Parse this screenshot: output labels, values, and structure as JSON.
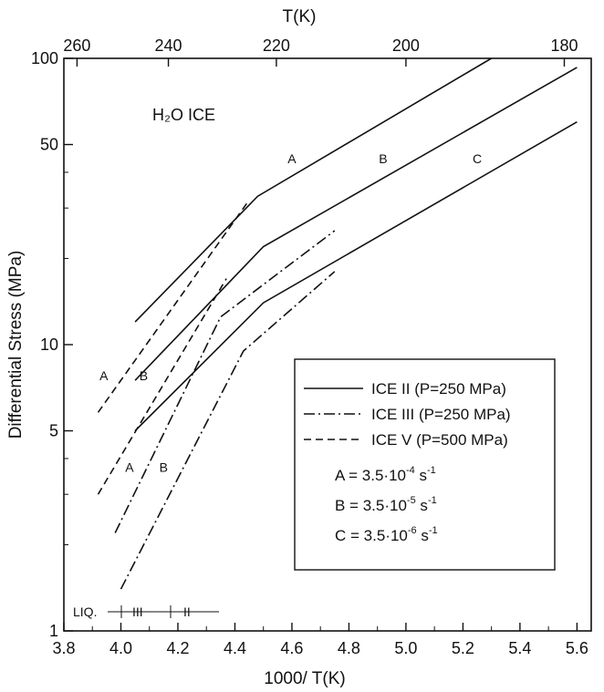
{
  "chart_data": {
    "type": "line",
    "title": "H₂O ICE",
    "xlabel": "1000/ T(K)",
    "ylabel": "Differential Stress (MPa)",
    "top_xlabel": "T(K)",
    "xlim": [
      3.8,
      5.65
    ],
    "ylim": [
      1,
      100
    ],
    "yscale": "log",
    "grid": false,
    "legend_position": "bottom-right",
    "x_ticks": [
      "3.8",
      "4.0",
      "4.2",
      "4.4",
      "4.6",
      "4.8",
      "5.0",
      "5.2",
      "5.4",
      "5.6"
    ],
    "y_ticks": [
      "1",
      "5",
      "10",
      "50",
      "100"
    ],
    "top_ticks": [
      "260",
      "240",
      "220",
      "200",
      "180"
    ],
    "series": [
      {
        "name": "ICE II (P=250 MPa)",
        "label": "A",
        "style": "solid",
        "x": [
          4.05,
          4.48,
          5.3
        ],
        "y": [
          12,
          33,
          100
        ]
      },
      {
        "name": "ICE II (P=250 MPa)",
        "label": "B",
        "style": "solid",
        "x": [
          4.05,
          4.5,
          5.6
        ],
        "y": [
          7.5,
          22,
          93
        ]
      },
      {
        "name": "ICE II (P=250 MPa)",
        "label": "C",
        "style": "solid",
        "x": [
          4.05,
          4.5,
          5.6
        ],
        "y": [
          5,
          14,
          60
        ]
      },
      {
        "name": "ICE III (P=250 MPa)",
        "label": "A",
        "style": "dashdot",
        "x": [
          3.98,
          4.35,
          4.75
        ],
        "y": [
          2.2,
          12.5,
          25
        ]
      },
      {
        "name": "ICE III (P=250 MPa)",
        "label": "B",
        "style": "dashdot",
        "x": [
          4.0,
          4.43,
          4.75
        ],
        "y": [
          1.4,
          9.5,
          18
        ]
      },
      {
        "name": "ICE V (P=500 MPa)",
        "label": "A",
        "style": "dashed",
        "x": [
          3.92,
          4.45
        ],
        "y": [
          5.8,
          32
        ]
      },
      {
        "name": "ICE V (P=500 MPa)",
        "label": "B",
        "style": "dashed",
        "x": [
          3.92,
          4.37
        ],
        "y": [
          3.0,
          17
        ]
      }
    ],
    "curve_labels": [
      {
        "text": "A",
        "x": 4.6,
        "y": 43
      },
      {
        "text": "B",
        "x": 4.92,
        "y": 43
      },
      {
        "text": "C",
        "x": 5.25,
        "y": 43
      },
      {
        "text": "A",
        "x": 3.94,
        "y": 7.5
      },
      {
        "text": "B",
        "x": 4.08,
        "y": 7.5
      },
      {
        "text": "A",
        "x": 4.03,
        "y": 3.6
      },
      {
        "text": "B",
        "x": 4.15,
        "y": 3.6
      }
    ],
    "legend": {
      "entries": [
        {
          "style": "solid",
          "text": "ICE II (P=250 MPa)"
        },
        {
          "style": "dashdot",
          "text": "ICE III (P=250 MPa)"
        },
        {
          "style": "dashed",
          "text": "ICE V (P=500 MPa)"
        }
      ],
      "rates": [
        {
          "prefix": "A = 3.5·10",
          "exp": "-4",
          "unit": " s",
          "unit_exp": "-1"
        },
        {
          "prefix": "B = 3.5·10",
          "exp": "-5",
          "unit": " s",
          "unit_exp": "-1"
        },
        {
          "prefix": "C = 3.5·10",
          "exp": "-6",
          "unit": " s",
          "unit_exp": "-1"
        }
      ]
    },
    "phase_strip": {
      "liq": "LIQ.",
      "iii": "III",
      "ii": "II"
    }
  }
}
